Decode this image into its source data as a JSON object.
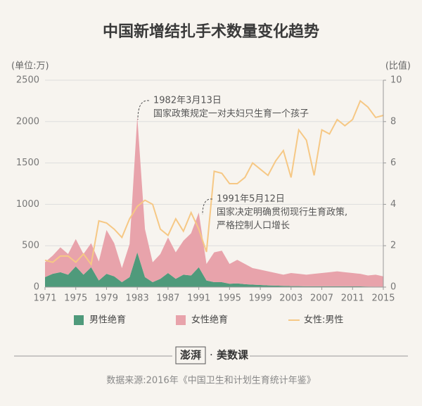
{
  "chart_data": {
    "type": "stacked-area-line",
    "title": "中国新增结扎手术数量变化趋势",
    "y_label": "(单位:万)",
    "y2_label": "(比值)",
    "x": [
      1971,
      1972,
      1973,
      1974,
      1975,
      1976,
      1977,
      1978,
      1979,
      1980,
      1981,
      1982,
      1983,
      1984,
      1985,
      1986,
      1987,
      1988,
      1989,
      1990,
      1991,
      1992,
      1993,
      1994,
      1995,
      1996,
      1997,
      1998,
      1999,
      2000,
      2001,
      2002,
      2003,
      2004,
      2005,
      2006,
      2007,
      2008,
      2009,
      2010,
      2011,
      2012,
      2013,
      2014,
      2015
    ],
    "xlim": [
      1971,
      2015
    ],
    "xticks": [
      1971,
      1975,
      1979,
      1983,
      1987,
      1991,
      1995,
      1999,
      2003,
      2007,
      2011,
      2015
    ],
    "ylim": [
      0,
      2500
    ],
    "yticks": [
      0,
      500,
      1000,
      1500,
      2000,
      2500
    ],
    "y2lim": [
      0,
      10
    ],
    "y2ticks": [
      0,
      2,
      4,
      6,
      8,
      10
    ],
    "grid": true,
    "series": [
      {
        "name": "男性绝育",
        "color": "#4f9a7b",
        "values": [
          120,
          160,
          180,
          150,
          250,
          150,
          240,
          80,
          160,
          130,
          60,
          120,
          420,
          120,
          60,
          100,
          170,
          100,
          150,
          140,
          240,
          80,
          60,
          60,
          40,
          45,
          35,
          30,
          25,
          20,
          18,
          15,
          12,
          12,
          10,
          10,
          10,
          10,
          10,
          10,
          8,
          8,
          6,
          5,
          5
        ]
      },
      {
        "name": "女性绝育",
        "color": "#e8a3ab",
        "values": [
          180,
          220,
          300,
          250,
          330,
          250,
          290,
          230,
          530,
          400,
          170,
          400,
          1640,
          580,
          240,
          300,
          430,
          320,
          410,
          510,
          660,
          200,
          360,
          380,
          240,
          285,
          245,
          200,
          185,
          170,
          152,
          135,
          158,
          148,
          140,
          150,
          160,
          170,
          180,
          170,
          162,
          152,
          134,
          145,
          125
        ]
      },
      {
        "name": "女性:男性",
        "color": "#f6c885",
        "axis": "y2",
        "values": [
          1.3,
          1.2,
          1.5,
          1.5,
          1.2,
          1.6,
          1.1,
          3.2,
          3.1,
          2.8,
          2.4,
          3.3,
          3.9,
          4.2,
          4.0,
          2.8,
          2.5,
          3.3,
          2.7,
          3.6,
          2.8,
          1.7,
          5.6,
          5.5,
          5.0,
          5.0,
          5.3,
          6.0,
          5.7,
          5.4,
          6.1,
          6.6,
          5.3,
          7.6,
          7.1,
          5.4,
          7.6,
          7.4,
          8.1,
          7.8,
          8.1,
          9.0,
          8.7,
          8.2,
          8.3
        ]
      }
    ],
    "annotations": [
      {
        "date": "1982年3月13日",
        "lines": [
          "国家政策规定一对夫妇只生育一个孩子"
        ]
      },
      {
        "date": "1991年5月12日",
        "lines": [
          "国家决定明确贯彻现行生育政策,",
          "严格控制人口增长"
        ]
      }
    ],
    "logo": [
      "澎湃",
      "美数课"
    ],
    "source": "数据来源:2016年《中国卫生和计划生育统计年鉴》"
  }
}
